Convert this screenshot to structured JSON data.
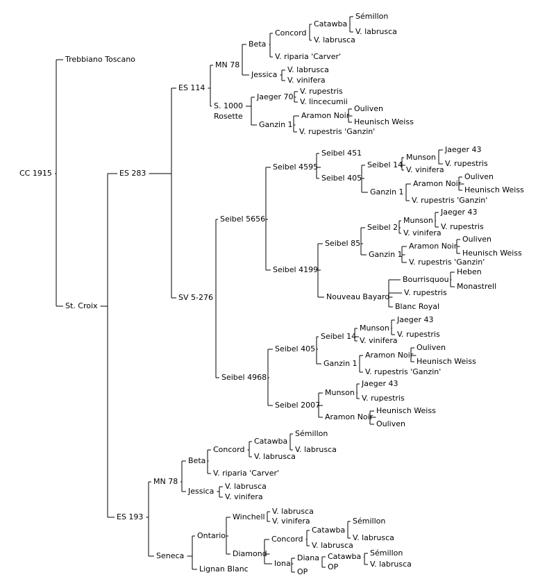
{
  "nodes": [
    {
      "id": "n0",
      "label": "CC 1915"
    },
    {
      "id": "n1",
      "label": "Trebbiano Toscano"
    },
    {
      "id": "n2",
      "label": "St. Croix"
    },
    {
      "id": "n3",
      "label": "ES 283"
    },
    {
      "id": "n4",
      "label": "ES 193"
    },
    {
      "id": "n5",
      "label": "ES 114"
    },
    {
      "id": "n6",
      "label": "SV 5-276"
    },
    {
      "id": "n7",
      "label": "MN 78"
    },
    {
      "id": "n8",
      "label": "S. 1000"
    },
    {
      "id": "n8b",
      "label": "Rosette"
    },
    {
      "id": "n9",
      "label": "Beta"
    },
    {
      "id": "n10",
      "label": "Jessica"
    },
    {
      "id": "n11",
      "label": "Concord"
    },
    {
      "id": "n12",
      "label": "V. riparia 'Carver'"
    },
    {
      "id": "n13",
      "label": "Catawba"
    },
    {
      "id": "n14",
      "label": "V. labrusca"
    },
    {
      "id": "n15",
      "label": "Sémillon"
    },
    {
      "id": "n16",
      "label": "V. labrusca"
    },
    {
      "id": "n17",
      "label": "V. labrusca"
    },
    {
      "id": "n18",
      "label": "V. vinifera"
    },
    {
      "id": "n19",
      "label": "Jaeger 70"
    },
    {
      "id": "n20",
      "label": "Ganzin 1"
    },
    {
      "id": "n21",
      "label": "V. rupestris"
    },
    {
      "id": "n22",
      "label": "V. lincecumii"
    },
    {
      "id": "n23",
      "label": "Aramon Noir"
    },
    {
      "id": "n24",
      "label": "V. rupestris 'Ganzin'"
    },
    {
      "id": "n25",
      "label": "Ouliven"
    },
    {
      "id": "n26",
      "label": "Heunisch Weiss"
    },
    {
      "id": "n27",
      "label": "Seibel 5656"
    },
    {
      "id": "n28",
      "label": "Seibel 4968"
    },
    {
      "id": "n29",
      "label": "Seibel 4595"
    },
    {
      "id": "n30",
      "label": "Seibel 4199"
    },
    {
      "id": "n31",
      "label": "Seibel 451"
    },
    {
      "id": "n32",
      "label": "Seibel 405"
    },
    {
      "id": "n33",
      "label": "Seibel 14"
    },
    {
      "id": "n34",
      "label": "Ganzin 1"
    },
    {
      "id": "n35",
      "label": "Munson"
    },
    {
      "id": "n36",
      "label": "V. vinifera"
    },
    {
      "id": "n37",
      "label": "Jaeger 43"
    },
    {
      "id": "n38",
      "label": "V. rupestris"
    },
    {
      "id": "n39",
      "label": "Aramon Noir"
    },
    {
      "id": "n40",
      "label": "V. rupestris 'Ganzin'"
    },
    {
      "id": "n41",
      "label": "Ouliven"
    },
    {
      "id": "n42",
      "label": "Heunisch Weiss"
    },
    {
      "id": "n43",
      "label": "Seibel 85"
    },
    {
      "id": "n44",
      "label": "Nouveau Bayard"
    },
    {
      "id": "n45",
      "label": "Seibel 2"
    },
    {
      "id": "n46",
      "label": "Ganzin 1"
    },
    {
      "id": "n47",
      "label": "Munson"
    },
    {
      "id": "n48",
      "label": "V. vinifera"
    },
    {
      "id": "n49",
      "label": "Jaeger 43"
    },
    {
      "id": "n50",
      "label": "V. rupestris"
    },
    {
      "id": "n51",
      "label": "Aramon Noir"
    },
    {
      "id": "n52",
      "label": "V. rupestris 'Ganzin'"
    },
    {
      "id": "n53",
      "label": "Ouliven"
    },
    {
      "id": "n54",
      "label": "Heunisch Weiss"
    },
    {
      "id": "n55",
      "label": "Bourrisquou"
    },
    {
      "id": "n56",
      "label": "V. rupestris"
    },
    {
      "id": "n57",
      "label": "Heben"
    },
    {
      "id": "n58",
      "label": "Monastrell"
    },
    {
      "id": "n59",
      "label": "Blanc Royal"
    },
    {
      "id": "n60",
      "label": "Seibel 405"
    },
    {
      "id": "n61",
      "label": "Seibel 2007"
    },
    {
      "id": "n62",
      "label": "Seibel 14"
    },
    {
      "id": "n63",
      "label": "Ganzin 1"
    },
    {
      "id": "n64",
      "label": "Munson"
    },
    {
      "id": "n65",
      "label": "V. vinifera"
    },
    {
      "id": "n66",
      "label": "Jaeger 43"
    },
    {
      "id": "n67",
      "label": "V. rupestris"
    },
    {
      "id": "n68",
      "label": "Aramon Noir"
    },
    {
      "id": "n69",
      "label": "V. rupestris 'Ganzin'"
    },
    {
      "id": "n70",
      "label": "Ouliven"
    },
    {
      "id": "n71",
      "label": "Heunisch Weiss"
    },
    {
      "id": "n72",
      "label": "Munson"
    },
    {
      "id": "n73",
      "label": "Aramon Noir"
    },
    {
      "id": "n74",
      "label": "Jaeger 43"
    },
    {
      "id": "n75",
      "label": "V. rupestris"
    },
    {
      "id": "n76",
      "label": "Heunisch Weiss"
    },
    {
      "id": "n77",
      "label": "Ouliven"
    },
    {
      "id": "n78",
      "label": "MN 78"
    },
    {
      "id": "n79",
      "label": "Seneca"
    },
    {
      "id": "n80",
      "label": "Beta"
    },
    {
      "id": "n81",
      "label": "Jessica"
    },
    {
      "id": "n82",
      "label": "Concord"
    },
    {
      "id": "n83",
      "label": "V. riparia 'Carver'"
    },
    {
      "id": "n84",
      "label": "Catawba"
    },
    {
      "id": "n85",
      "label": "V. labrusca"
    },
    {
      "id": "n86",
      "label": "Sémillon"
    },
    {
      "id": "n87",
      "label": "V. labrusca"
    },
    {
      "id": "n88",
      "label": "V. labrusca"
    },
    {
      "id": "n89",
      "label": "V. vinifera"
    },
    {
      "id": "n90",
      "label": "Ontario"
    },
    {
      "id": "n91",
      "label": "Lignan Blanc"
    },
    {
      "id": "n92",
      "label": "Winchell"
    },
    {
      "id": "n93",
      "label": "Diamond"
    },
    {
      "id": "n94",
      "label": "V. labrusca"
    },
    {
      "id": "n95",
      "label": "V. vinifera"
    },
    {
      "id": "n96",
      "label": "Concord"
    },
    {
      "id": "n97",
      "label": "Iona"
    },
    {
      "id": "n98",
      "label": "Catawba"
    },
    {
      "id": "n99",
      "label": "V. labrusca"
    },
    {
      "id": "n100",
      "label": "Sémillon"
    },
    {
      "id": "n101",
      "label": "V. labrusca"
    },
    {
      "id": "n102",
      "label": "Diana"
    },
    {
      "id": "n103",
      "label": "OP"
    },
    {
      "id": "n104",
      "label": "Catawba"
    },
    {
      "id": "n105",
      "label": "OP"
    },
    {
      "id": "n106",
      "label": "Sémillon"
    },
    {
      "id": "n107",
      "label": "V. labrusca"
    }
  ]
}
